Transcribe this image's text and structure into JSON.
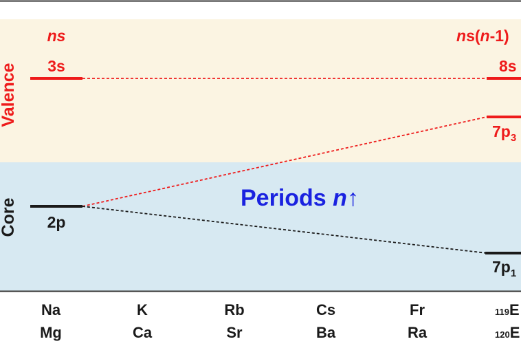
{
  "colors": {
    "valence_bg": "#fbf4e2",
    "core_bg": "#d7e9f2",
    "red": "#ee1b1b",
    "black": "#1a1a1a",
    "blue": "#1a22e0",
    "frame": "#333333"
  },
  "regions": {
    "valence_label": "Valence",
    "core_label": "Core"
  },
  "left_column": {
    "header": "ns",
    "level_valence": "3s",
    "level_core": "2p"
  },
  "right_column": {
    "header_prefix": "ns(",
    "header_n": "n",
    "header_suffix": "-1)",
    "level_8s": "8s",
    "level_7p3_main": "7p",
    "level_7p3_sub": "3",
    "level_7p1_main": "7p",
    "level_7p1_sub": "1"
  },
  "center_label": {
    "text": "Periods ",
    "n": "n",
    "arrow": "↑"
  },
  "elements": {
    "row1": [
      "Na",
      "K",
      "Rb",
      "Cs",
      "Fr"
    ],
    "row2": [
      "Mg",
      "Ca",
      "Sr",
      "Ba",
      "Ra"
    ],
    "last1_num": "119",
    "last1_sym": "E",
    "last2_num": "120",
    "last2_sym": "E"
  }
}
